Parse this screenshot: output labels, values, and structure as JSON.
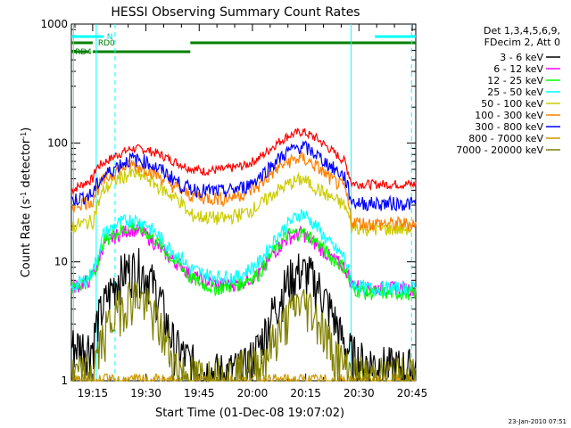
{
  "chart_data": {
    "type": "line",
    "title": "HESSI Observing Summary Count Rates",
    "xlabel": "Start Time (01-Dec-08 19:07:02)",
    "ylabel_prefix": "Count Rate (s",
    "ylabel_sup1": "-1",
    "ylabel_mid": " detector",
    "ylabel_sup2": "-1",
    "ylabel_suffix": ")",
    "yscale": "log",
    "ylim": [
      1,
      1000
    ],
    "xlim_min": [
      9,
      106
    ],
    "xticks_min": [
      15,
      30,
      45,
      60,
      75,
      90,
      105
    ],
    "xtick_labels": [
      "19:15",
      "19:30",
      "19:45",
      "20:00",
      "20:15",
      "20:30",
      "20:45"
    ],
    "yticks": [
      1,
      10,
      100,
      1000
    ],
    "ytick_labels": [
      "1",
      "10",
      "100",
      "1000"
    ],
    "footer_date": "23-Jan-2010 07:51",
    "legend_header": [
      "Det 1,3,4,5,6,9,",
      "FDecim 2, Att 0"
    ],
    "legend_placement": "right",
    "series": [
      {
        "name": "3 - 6 keV",
        "color": "#000000",
        "points": [
          [
            9,
            2
          ],
          [
            15,
            2
          ],
          [
            16,
            3
          ],
          [
            19,
            5
          ],
          [
            22,
            7.5
          ],
          [
            25,
            8.8
          ],
          [
            28,
            9
          ],
          [
            31,
            7.5
          ],
          [
            34,
            5
          ],
          [
            36,
            3
          ],
          [
            38,
            2
          ],
          [
            42,
            1.5
          ],
          [
            46,
            1.2
          ],
          [
            52,
            1.2
          ],
          [
            58,
            1.3
          ],
          [
            62,
            2
          ],
          [
            66,
            4
          ],
          [
            70,
            7
          ],
          [
            73,
            8.5
          ],
          [
            76,
            8
          ],
          [
            79,
            6
          ],
          [
            82,
            4
          ],
          [
            86,
            2
          ],
          [
            90,
            1.5
          ],
          [
            95,
            1.4
          ],
          [
            100,
            1.3
          ],
          [
            106,
            1.3
          ]
        ]
      },
      {
        "name": "6 - 12 keV",
        "color": "#ff00ff",
        "points": [
          [
            9,
            6
          ],
          [
            14,
            7
          ],
          [
            16,
            9
          ],
          [
            18,
            14
          ],
          [
            22,
            17
          ],
          [
            26,
            19
          ],
          [
            30,
            17
          ],
          [
            34,
            13
          ],
          [
            38,
            10
          ],
          [
            40,
            9.5
          ],
          [
            42,
            8
          ],
          [
            46,
            7
          ],
          [
            50,
            6.5
          ],
          [
            56,
            6.5
          ],
          [
            62,
            8
          ],
          [
            66,
            12
          ],
          [
            70,
            16
          ],
          [
            74,
            17.5
          ],
          [
            78,
            14
          ],
          [
            82,
            11
          ],
          [
            86,
            9
          ],
          [
            88,
            6.5
          ],
          [
            92,
            6
          ],
          [
            96,
            6
          ],
          [
            106,
            6
          ]
        ]
      },
      {
        "name": "12 - 25 keV",
        "color": "#00ff00",
        "points": [
          [
            9,
            6
          ],
          [
            14,
            7
          ],
          [
            16,
            9
          ],
          [
            18,
            15
          ],
          [
            22,
            18
          ],
          [
            26,
            20
          ],
          [
            30,
            18
          ],
          [
            34,
            14
          ],
          [
            38,
            10
          ],
          [
            40,
            9.5
          ],
          [
            42,
            7.5
          ],
          [
            46,
            6.5
          ],
          [
            50,
            6
          ],
          [
            56,
            6.5
          ],
          [
            62,
            8
          ],
          [
            66,
            12.5
          ],
          [
            70,
            17
          ],
          [
            74,
            18
          ],
          [
            78,
            15
          ],
          [
            82,
            11
          ],
          [
            86,
            9
          ],
          [
            88,
            6
          ],
          [
            92,
            5.5
          ],
          [
            106,
            5.5
          ]
        ]
      },
      {
        "name": "25 - 50 keV",
        "color": "#00ffff",
        "points": [
          [
            9,
            6
          ],
          [
            14,
            7.5
          ],
          [
            16,
            10
          ],
          [
            18,
            17
          ],
          [
            22,
            21
          ],
          [
            26,
            23
          ],
          [
            30,
            21
          ],
          [
            34,
            16
          ],
          [
            38,
            12
          ],
          [
            40,
            11
          ],
          [
            42,
            9
          ],
          [
            46,
            8
          ],
          [
            50,
            7.5
          ],
          [
            56,
            7.5
          ],
          [
            62,
            10
          ],
          [
            66,
            15
          ],
          [
            70,
            21
          ],
          [
            74,
            26
          ],
          [
            78,
            20
          ],
          [
            82,
            14
          ],
          [
            86,
            11
          ],
          [
            88,
            6.5
          ],
          [
            92,
            6
          ],
          [
            106,
            6
          ]
        ]
      },
      {
        "name": "50 - 100 keV",
        "color": "#cccc00",
        "points": [
          [
            9,
            20
          ],
          [
            15,
            22
          ],
          [
            16,
            28
          ],
          [
            18,
            40
          ],
          [
            22,
            50
          ],
          [
            26,
            55
          ],
          [
            30,
            52
          ],
          [
            34,
            42
          ],
          [
            38,
            35
          ],
          [
            40,
            32
          ],
          [
            42,
            25
          ],
          [
            46,
            24
          ],
          [
            52,
            23
          ],
          [
            58,
            26
          ],
          [
            62,
            30
          ],
          [
            66,
            38
          ],
          [
            70,
            45
          ],
          [
            74,
            50
          ],
          [
            78,
            42
          ],
          [
            82,
            35
          ],
          [
            86,
            30
          ],
          [
            88,
            20
          ],
          [
            92,
            19
          ],
          [
            106,
            19
          ]
        ]
      },
      {
        "name": "100 - 300 keV",
        "color": "#ff8000",
        "points": [
          [
            9,
            30
          ],
          [
            15,
            33
          ],
          [
            16,
            40
          ],
          [
            18,
            48
          ],
          [
            22,
            60
          ],
          [
            26,
            66
          ],
          [
            30,
            62
          ],
          [
            34,
            52
          ],
          [
            38,
            43
          ],
          [
            40,
            40
          ],
          [
            42,
            37
          ],
          [
            46,
            35
          ],
          [
            52,
            34
          ],
          [
            58,
            38
          ],
          [
            62,
            44
          ],
          [
            66,
            58
          ],
          [
            70,
            70
          ],
          [
            74,
            75
          ],
          [
            78,
            64
          ],
          [
            82,
            50
          ],
          [
            86,
            42
          ],
          [
            88,
            22
          ],
          [
            92,
            21
          ],
          [
            106,
            21
          ]
        ]
      },
      {
        "name": "300 - 800 keV",
        "color": "#0000ff",
        "points": [
          [
            9,
            33
          ],
          [
            15,
            37
          ],
          [
            16,
            44
          ],
          [
            18,
            52
          ],
          [
            22,
            65
          ],
          [
            26,
            74
          ],
          [
            30,
            70
          ],
          [
            34,
            60
          ],
          [
            38,
            50
          ],
          [
            40,
            44
          ],
          [
            42,
            42
          ],
          [
            46,
            40
          ],
          [
            52,
            39
          ],
          [
            58,
            43
          ],
          [
            62,
            52
          ],
          [
            66,
            68
          ],
          [
            70,
            85
          ],
          [
            74,
            95
          ],
          [
            78,
            80
          ],
          [
            82,
            64
          ],
          [
            86,
            52
          ],
          [
            88,
            32
          ],
          [
            92,
            31
          ],
          [
            106,
            31
          ]
        ]
      },
      {
        "name": "800 - 7000 keV",
        "color": "#cc9900",
        "points": [
          [
            9,
            1
          ],
          [
            106,
            1
          ]
        ]
      },
      {
        "name": "7000 - 20000 keV",
        "color": "#808000",
        "points": [
          [
            9,
            1.1
          ],
          [
            15,
            1.2
          ],
          [
            16,
            1.6
          ],
          [
            19,
            2.8
          ],
          [
            22,
            4
          ],
          [
            25,
            5
          ],
          [
            28,
            5.2
          ],
          [
            31,
            4
          ],
          [
            34,
            2.8
          ],
          [
            36,
            2
          ],
          [
            38,
            1.4
          ],
          [
            42,
            1.1
          ],
          [
            52,
            1.1
          ],
          [
            62,
            1.4
          ],
          [
            66,
            2.2
          ],
          [
            70,
            3.5
          ],
          [
            73,
            4.6
          ],
          [
            76,
            4.3
          ],
          [
            79,
            3.2
          ],
          [
            82,
            2
          ],
          [
            86,
            1.3
          ],
          [
            90,
            1.1
          ],
          [
            106,
            1.1
          ]
        ]
      }
    ],
    "red_series": {
      "name": "",
      "color": "#ff0000",
      "points": [
        [
          9,
          40
        ],
        [
          15,
          50
        ],
        [
          16,
          62
        ],
        [
          18,
          68
        ],
        [
          22,
          80
        ],
        [
          26,
          90
        ],
        [
          30,
          88
        ],
        [
          34,
          80
        ],
        [
          38,
          70
        ],
        [
          40,
          66
        ],
        [
          42,
          62
        ],
        [
          46,
          58
        ],
        [
          52,
          60
        ],
        [
          58,
          65
        ],
        [
          62,
          75
        ],
        [
          66,
          95
        ],
        [
          70,
          115
        ],
        [
          74,
          125
        ],
        [
          78,
          110
        ],
        [
          82,
          88
        ],
        [
          86,
          70
        ],
        [
          88,
          46
        ],
        [
          92,
          45
        ],
        [
          106,
          45
        ]
      ]
    },
    "overlays": {
      "rd0_label": "RD0",
      "rd4_label": "RD4",
      "n_label": "N"
    }
  }
}
